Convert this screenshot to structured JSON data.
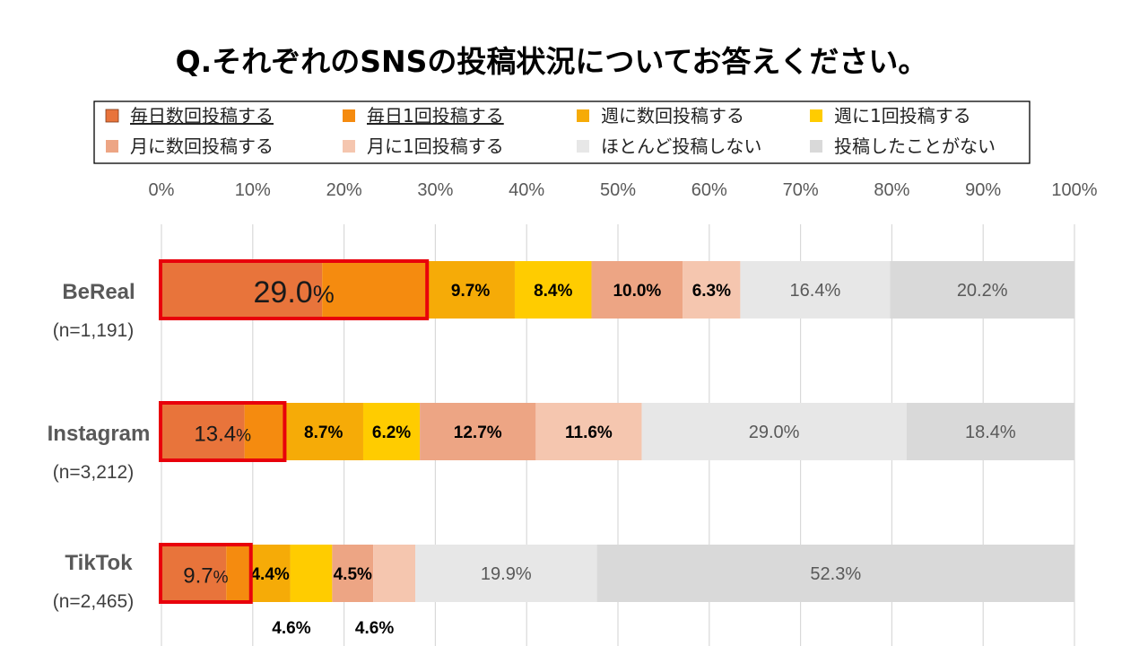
{
  "chart_data": {
    "type": "bar",
    "orientation": "horizontal",
    "stacked": true,
    "title": "Q.それぞれのSNSの投稿状況についてお答えください。",
    "xlim": [
      0,
      100
    ],
    "x_ticks": [
      "0%",
      "10%",
      "20%",
      "30%",
      "40%",
      "50%",
      "60%",
      "70%",
      "80%",
      "90%",
      "100%"
    ],
    "grid": "vertical",
    "legend_position": "top",
    "categories": [
      {
        "name": "BeReal",
        "n": "(n=1,191)",
        "highlight": "29.0",
        "highlight_unit": "%"
      },
      {
        "name": "Instagram",
        "n": "(n=3,212)",
        "highlight": "13.4",
        "highlight_unit": "%"
      },
      {
        "name": "TikTok",
        "n": "(n=2,465)",
        "highlight": "9.7",
        "highlight_unit": "%"
      }
    ],
    "series": [
      {
        "name": "毎日数回投稿する",
        "color": "#E8743B",
        "values": [
          17.6,
          9.1,
          7.1
        ],
        "labels": [
          "",
          "",
          ""
        ],
        "light": false
      },
      {
        "name": "毎日1回投稿する",
        "color": "#F58B0F",
        "values": [
          11.4,
          4.3,
          2.6
        ],
        "labels": [
          "",
          "",
          ""
        ],
        "light": false
      },
      {
        "name": "週に数回投稿する",
        "color": "#F6AB07",
        "values": [
          9.7,
          8.7,
          4.4
        ],
        "labels": [
          "9.7%",
          "8.7%",
          "4.4%"
        ],
        "light": false
      },
      {
        "name": "週に1回投稿する",
        "color": "#FFCC00",
        "values": [
          8.4,
          6.2,
          4.6
        ],
        "labels": [
          "8.4%",
          "6.2%",
          "4.6%"
        ],
        "light": false
      },
      {
        "name": "月に数回投稿する",
        "color": "#EDA584",
        "values": [
          10.0,
          12.7,
          4.5
        ],
        "labels": [
          "10.0%",
          "12.7%",
          "4.5%"
        ],
        "light": false
      },
      {
        "name": "月に1回投稿する",
        "color": "#F5C6AF",
        "values": [
          6.3,
          11.6,
          4.6
        ],
        "labels": [
          "6.3%",
          "11.6%",
          "4.6%"
        ],
        "light": false
      },
      {
        "name": "ほとんど投稿しない",
        "color": "#E7E7E7",
        "values": [
          16.4,
          29.0,
          19.9
        ],
        "labels": [
          "16.4%",
          "29.0%",
          "19.9%"
        ],
        "light": true
      },
      {
        "name": "投稿したことがない",
        "color": "#D9D9D9",
        "values": [
          20.2,
          18.4,
          52.3
        ],
        "labels": [
          "20.2%",
          "18.4%",
          "52.3%"
        ],
        "light": true
      }
    ]
  }
}
